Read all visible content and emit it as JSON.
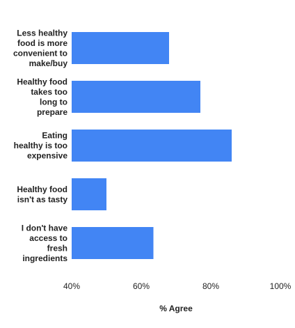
{
  "chart_data": {
    "type": "bar",
    "orientation": "horizontal",
    "title": "",
    "xlabel": "% Agree",
    "ylabel": "",
    "xlim": [
      40,
      100
    ],
    "x_ticks": [
      "40%",
      "60%",
      "80%",
      "100%"
    ],
    "x_tick_values": [
      40,
      60,
      80,
      100
    ],
    "categories": [
      [
        "Less healthy",
        "food is more",
        "convenient to",
        "make/buy"
      ],
      [
        "Healthy food",
        "takes too",
        "long to",
        "prepare"
      ],
      [
        "Eating",
        "healthy is too",
        "expensive"
      ],
      [
        "Healthy food",
        "isn't as tasty"
      ],
      [
        "I don't have",
        "access to",
        "fresh",
        "ingredients"
      ]
    ],
    "values": [
      68,
      77,
      86,
      50,
      63.5
    ],
    "bar_color": "#4285f4",
    "grid": false,
    "legend": "none"
  }
}
